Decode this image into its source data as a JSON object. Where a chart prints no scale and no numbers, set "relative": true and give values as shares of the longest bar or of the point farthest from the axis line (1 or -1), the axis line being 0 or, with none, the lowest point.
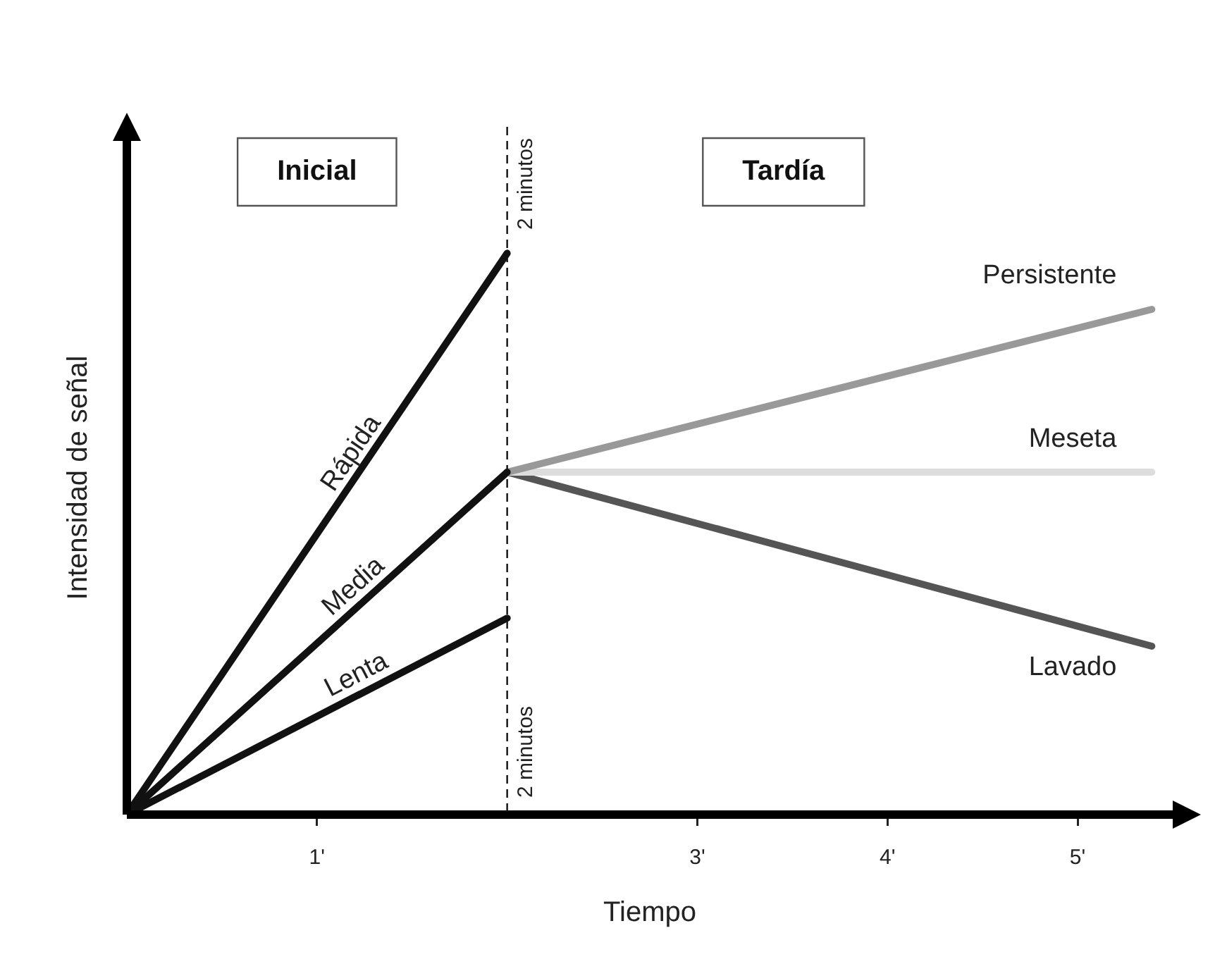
{
  "chart_data": {
    "type": "line",
    "relative": true,
    "xlabel": "Tiempo",
    "ylabel": "Intensidad de señal",
    "xlim": [
      0,
      5.5
    ],
    "xticks": [
      {
        "value": 1,
        "label": "1'"
      },
      {
        "value": 3,
        "label": "3'"
      },
      {
        "value": 4,
        "label": "4'"
      },
      {
        "value": 5,
        "label": "5'"
      }
    ],
    "series": [
      {
        "name": "Rápida",
        "color": "#111111",
        "x": [
          0,
          2
        ],
        "values": [
          0,
          1
        ]
      },
      {
        "name": "Media",
        "color": "#111111",
        "x": [
          0,
          2
        ],
        "values": [
          0,
          0.61
        ]
      },
      {
        "name": "Lenta",
        "color": "#111111",
        "x": [
          0,
          2
        ],
        "values": [
          0,
          0.35
        ]
      },
      {
        "name": "Persistente",
        "color": "#999999",
        "x": [
          2,
          5.39
        ],
        "values": [
          0.61,
          0.9
        ]
      },
      {
        "name": "Meseta",
        "color": "#dddddd",
        "x": [
          2,
          5.39
        ],
        "values": [
          0.61,
          0.61
        ]
      },
      {
        "name": "Lavado",
        "color": "#555555",
        "x": [
          2,
          5.39
        ],
        "values": [
          0.61,
          0.3
        ]
      }
    ],
    "ref_lines": [
      {
        "axis": "x",
        "value": 2,
        "label": "2 minutos",
        "color": "#111111",
        "line_style": "dashed"
      }
    ],
    "annotations": [
      "Inicial",
      "Tardía",
      {
        "text": "2 minutos",
        "x": 2
      }
    ],
    "grid": false,
    "legend": false,
    "marker": "none",
    "line_style": "solid"
  }
}
